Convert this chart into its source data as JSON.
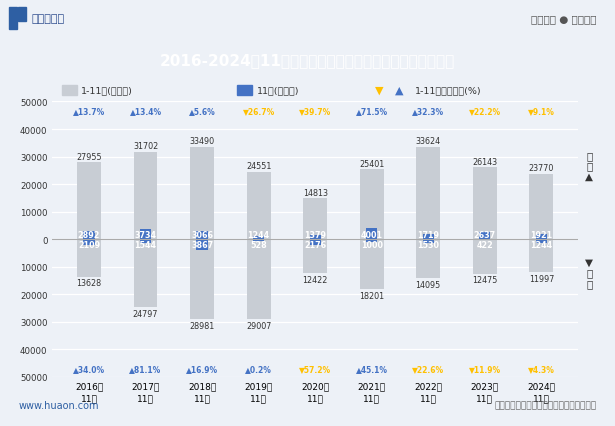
{
  "years": [
    "2016年\n11月",
    "2017年\n11月",
    "2018年\n11月",
    "2019年\n11月",
    "2020年\n11月",
    "2021年\n11月",
    "2022年\n11月",
    "2023年\n11月",
    "2024年\n11月"
  ],
  "export_cumul": [
    27955,
    31702,
    33490,
    24551,
    14813,
    25401,
    33624,
    26143,
    23770
  ],
  "export_month": [
    2892,
    3734,
    3066,
    1244,
    1379,
    4001,
    1719,
    2637,
    1921
  ],
  "import_cumul": [
    13628,
    24797,
    28981,
    29007,
    12422,
    18201,
    14095,
    12475,
    11997
  ],
  "import_month": [
    2109,
    1544,
    3867,
    528,
    2176,
    1000,
    1530,
    422,
    1244
  ],
  "export_growth": [
    13.7,
    13.4,
    5.6,
    -26.7,
    -39.7,
    71.5,
    32.3,
    -22.2,
    -9.1
  ],
  "import_growth": [
    34.0,
    81.1,
    16.9,
    0.2,
    -57.2,
    45.1,
    -22.6,
    -11.9,
    -4.3
  ],
  "color_bar_cumul": "#c8cdd4",
  "color_bar_month_export": "#4472c4",
  "color_bar_month_import": "#4472c4",
  "color_growth_pos": "#4472c4",
  "color_growth_neg": "#ffc000",
  "title": "2016-2024年11月宁夏回族自治区外商投资企业进、出口额",
  "title_bg": "#2e4d8e",
  "title_color": "#ffffff",
  "bg_color": "#edf1f7",
  "chart_bg": "#edf1f7",
  "header_bg": "#ffffff",
  "ylim": 50000,
  "source_text": "数据来源：中国海关、华经产业研究院整理",
  "logo_text": "华经情报网",
  "slogan_text": "专业严谨 ● 客观科学",
  "website_text": "www.huaon.com"
}
